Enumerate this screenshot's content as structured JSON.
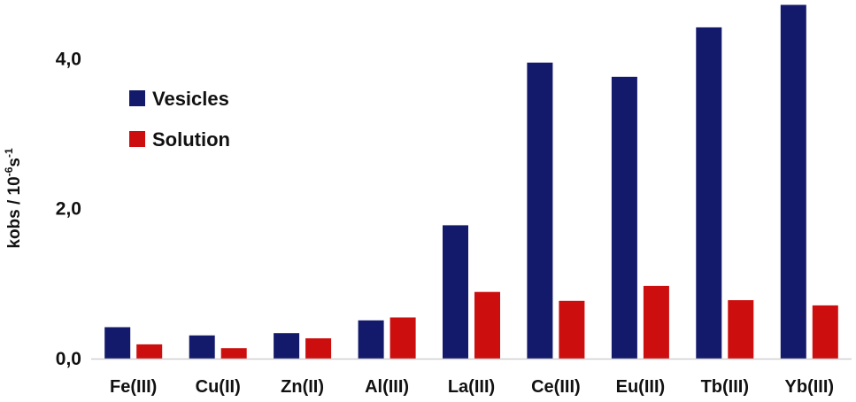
{
  "chart_data": {
    "type": "bar",
    "categories": [
      "Fe(III)",
      "Cu(II)",
      "Zn(II)",
      "Al(III)",
      "La(III)",
      "Ce(III)",
      "Eu(III)",
      "Tb(III)",
      "Yb(III)"
    ],
    "series": [
      {
        "name": "Vesicles",
        "color": "#141a6b",
        "values": [
          0.42,
          0.31,
          0.34,
          0.51,
          1.78,
          3.95,
          3.76,
          4.42,
          4.72
        ]
      },
      {
        "name": "Solution",
        "color": "#cc0e0e",
        "values": [
          0.19,
          0.14,
          0.27,
          0.55,
          0.89,
          0.77,
          0.97,
          0.78,
          0.71
        ]
      }
    ],
    "ylabel": {
      "base": "kobs / 10",
      "exp1": "-6",
      "mid": "s",
      "exp2": "-1"
    },
    "yticks": [
      {
        "value": 0,
        "label": "0,0"
      },
      {
        "value": 2,
        "label": "2,0"
      },
      {
        "value": 4,
        "label": "4,0"
      }
    ],
    "ylim": [
      0,
      4.75
    ],
    "grid": false,
    "legend_position": "upper-left"
  }
}
